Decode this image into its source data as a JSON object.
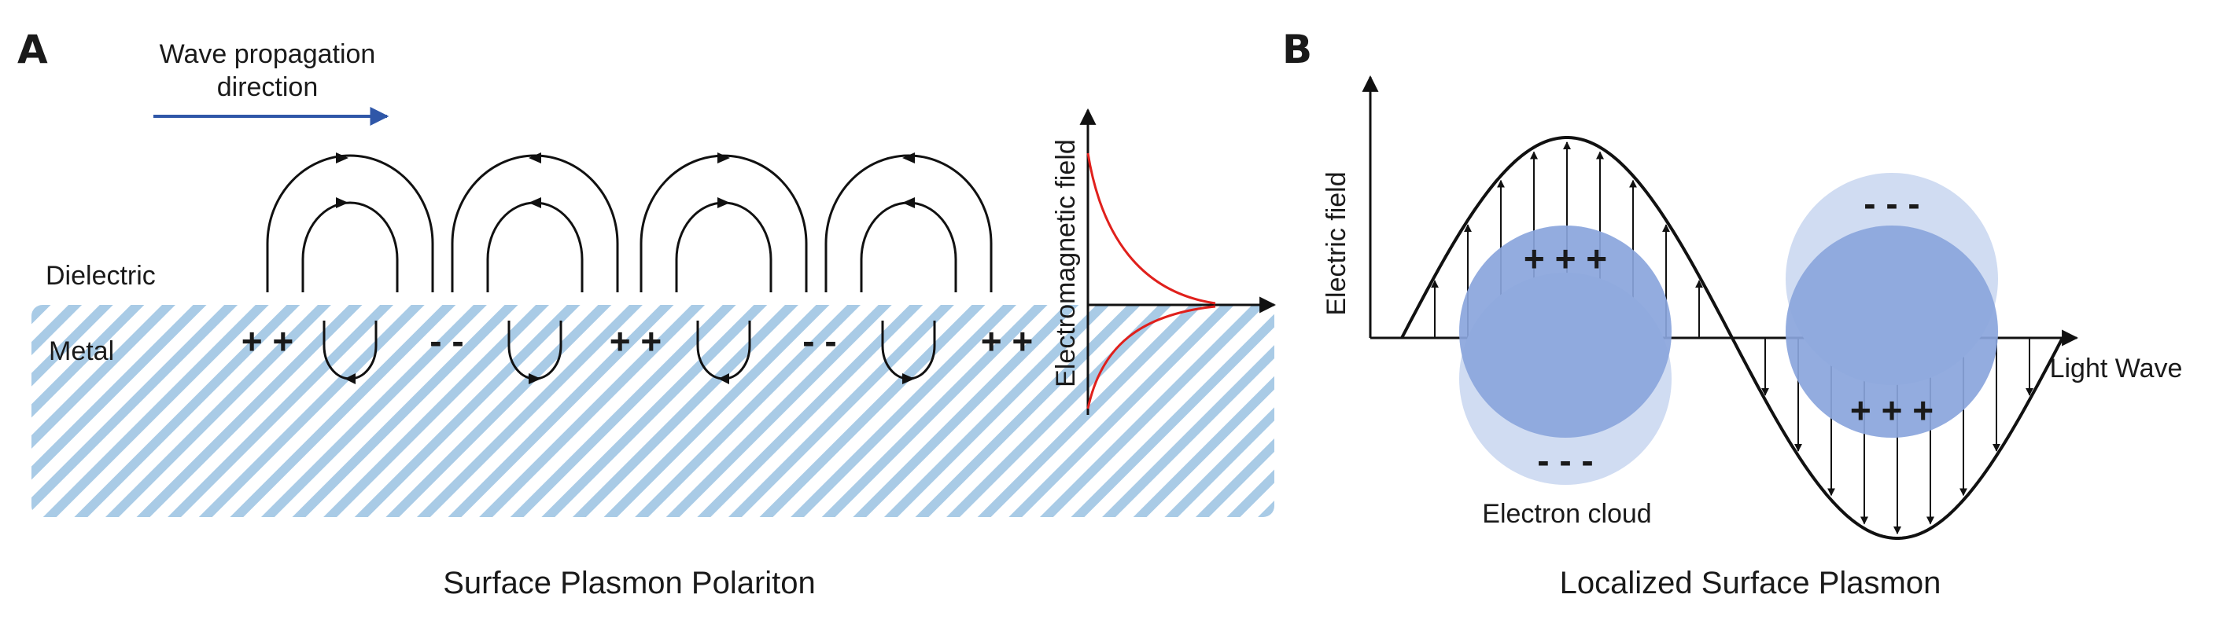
{
  "panel_a": {
    "letter": "A",
    "wave_label_line1": "Wave propagation",
    "wave_label_line2": "direction",
    "dielectric_label": "Dielectric",
    "metal_label": "Metal",
    "charges": [
      "+ +",
      "- -",
      "+ +",
      "- -",
      "+ +"
    ],
    "field_axis_label": "Electromagnetic  field",
    "caption": "Surface Plasmon Polariton"
  },
  "panel_b": {
    "letter": "B",
    "y_axis_label": "Electric field",
    "x_axis_label": "Light Wave",
    "top_left_charge": "+ + +",
    "bottom_left_charge": "- - -",
    "top_right_charge": "- - -",
    "bottom_right_charge": "+ + +",
    "electron_cloud_label": "Electron cloud",
    "caption": "Localized Surface Plasmon"
  },
  "colors": {
    "arrow_blue": "#2f57a8",
    "metal_stripe": "#a9cbe6",
    "field_red": "#e0201c",
    "particle": "#8aa5dc",
    "cloud": "#d0dcf2"
  }
}
